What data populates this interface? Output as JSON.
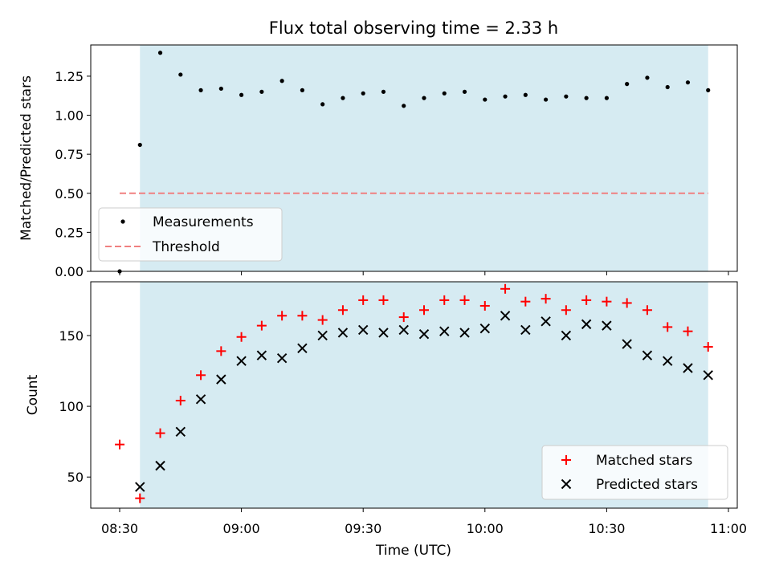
{
  "chart_data": [
    {
      "type": "scatter",
      "title": "Flux total observing time = 2.33 h",
      "xlabel": "",
      "ylabel": "Matched/Predicted stars",
      "ylim": [
        0,
        1.45
      ],
      "yticks": [
        "0.00",
        "0.25",
        "0.50",
        "0.75",
        "1.00",
        "1.25"
      ],
      "highlight_span": [
        "08:35",
        "10:55"
      ],
      "legend_position": "lower-left",
      "x": [
        "08:30",
        "08:35",
        "08:40",
        "08:45",
        "08:50",
        "08:55",
        "09:00",
        "09:05",
        "09:10",
        "09:15",
        "09:20",
        "09:25",
        "09:30",
        "09:35",
        "09:40",
        "09:45",
        "09:50",
        "09:55",
        "10:00",
        "10:05",
        "10:10",
        "10:15",
        "10:20",
        "10:25",
        "10:30",
        "10:35",
        "10:40",
        "10:45",
        "10:50",
        "10:55"
      ],
      "series": [
        {
          "name": "Measurements",
          "marker": "dot",
          "color": "#000000",
          "values": [
            0.0,
            0.81,
            1.4,
            1.26,
            1.16,
            1.17,
            1.13,
            1.15,
            1.22,
            1.16,
            1.07,
            1.11,
            1.14,
            1.15,
            1.06,
            1.11,
            1.14,
            1.15,
            1.1,
            1.12,
            1.13,
            1.1,
            1.12,
            1.11,
            1.11,
            1.2,
            1.24,
            1.18,
            1.21,
            1.16
          ]
        },
        {
          "name": "Threshold",
          "marker": "dashed-line",
          "color": "#f08080",
          "x": [
            "08:30",
            "10:55"
          ],
          "values": [
            0.5,
            0.5
          ]
        }
      ]
    },
    {
      "type": "scatter",
      "title": "",
      "xlabel": "Time (UTC)",
      "ylabel": "Count",
      "ylim": [
        28,
        188
      ],
      "yticks": [
        "50",
        "100",
        "150"
      ],
      "xticks": [
        "08:30",
        "09:00",
        "09:30",
        "10:00",
        "10:30",
        "11:00"
      ],
      "highlight_span": [
        "08:35",
        "10:55"
      ],
      "legend_position": "lower-right",
      "x": [
        "08:30",
        "08:35",
        "08:40",
        "08:45",
        "08:50",
        "08:55",
        "09:00",
        "09:05",
        "09:10",
        "09:15",
        "09:20",
        "09:25",
        "09:30",
        "09:35",
        "09:40",
        "09:45",
        "09:50",
        "09:55",
        "10:00",
        "10:05",
        "10:10",
        "10:15",
        "10:20",
        "10:25",
        "10:30",
        "10:35",
        "10:40",
        "10:45",
        "10:50",
        "10:55"
      ],
      "series": [
        {
          "name": "Matched stars",
          "marker": "plus",
          "color": "#ff0000",
          "values": [
            73,
            35,
            81,
            104,
            122,
            139,
            149,
            157,
            164,
            164,
            161,
            168,
            175,
            175,
            163,
            168,
            175,
            175,
            171,
            183,
            174,
            176,
            168,
            175,
            174,
            173,
            168,
            156,
            153,
            142
          ]
        },
        {
          "name": "Predicted stars",
          "marker": "x",
          "color": "#000000",
          "x": [
            "08:35",
            "08:40",
            "08:45",
            "08:50",
            "08:55",
            "09:00",
            "09:05",
            "09:10",
            "09:15",
            "09:20",
            "09:25",
            "09:30",
            "09:35",
            "09:40",
            "09:45",
            "09:50",
            "09:55",
            "10:00",
            "10:05",
            "10:10",
            "10:15",
            "10:20",
            "10:25",
            "10:30",
            "10:35",
            "10:40",
            "10:45",
            "10:50",
            "10:55"
          ],
          "values": [
            43,
            58,
            82,
            105,
            119,
            132,
            136,
            134,
            141,
            150,
            152,
            154,
            152,
            154,
            151,
            153,
            152,
            155,
            164,
            154,
            160,
            150,
            158,
            157,
            144,
            136,
            132,
            127,
            122
          ]
        }
      ]
    }
  ],
  "colors": {
    "span_fill": "#add8e6",
    "threshold": "#f08080",
    "matched": "#ff0000",
    "predicted": "#000000"
  }
}
